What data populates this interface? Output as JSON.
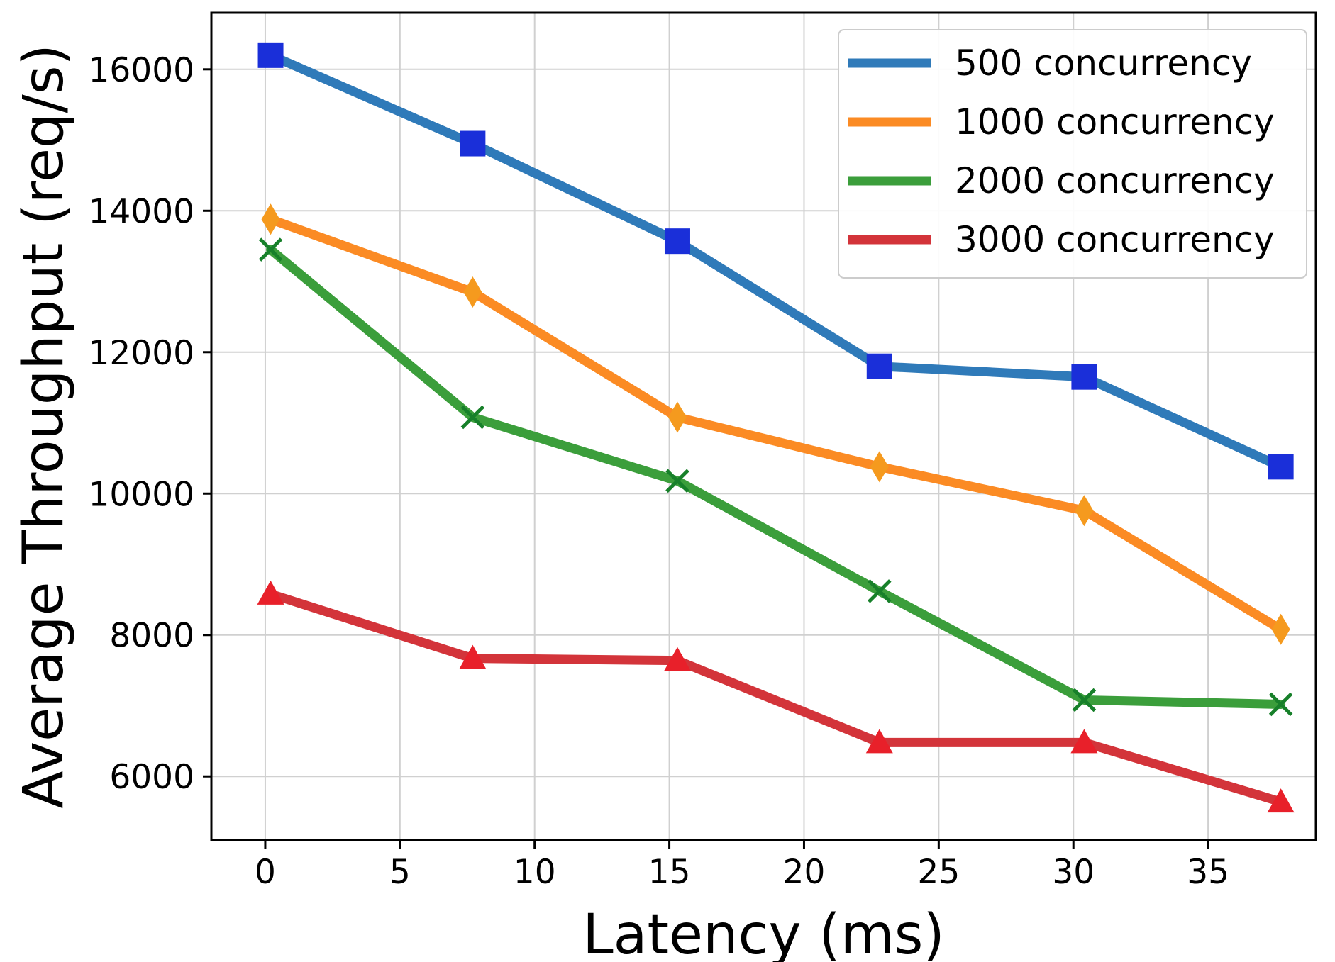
{
  "chart_data": {
    "type": "line",
    "title": "",
    "xlabel": "Latency (ms)",
    "ylabel": "Average Throughput (req/s)",
    "xlim": [
      -2,
      39
    ],
    "ylim": [
      5100,
      16800
    ],
    "xticks": [
      0,
      5,
      10,
      15,
      20,
      25,
      30,
      35
    ],
    "yticks": [
      6000,
      8000,
      10000,
      12000,
      14000,
      16000
    ],
    "grid": true,
    "legend_position": "top-right",
    "x": [
      0.2,
      7.7,
      15.3,
      22.8,
      30.4,
      37.7
    ],
    "series": [
      {
        "name": "500 concurrency",
        "color": "#2f7ab9",
        "marker": "square",
        "marker_color": "#1a2fd9",
        "values": [
          16200,
          14950,
          13570,
          11800,
          11650,
          10380
        ]
      },
      {
        "name": "1000 concurrency",
        "color": "#fb8b24",
        "marker": "diamond",
        "marker_color": "#f59a1e",
        "values": [
          13880,
          12850,
          11080,
          10380,
          9760,
          8080
        ]
      },
      {
        "name": "2000 concurrency",
        "color": "#3b9e3b",
        "marker": "x",
        "marker_color": "#17802a",
        "values": [
          13450,
          11080,
          10180,
          8620,
          7080,
          7020
        ]
      },
      {
        "name": "3000 concurrency",
        "color": "#d3343a",
        "marker": "triangle",
        "marker_color": "#e8202a",
        "values": [
          8580,
          7670,
          7640,
          6480,
          6480,
          5640
        ]
      }
    ]
  }
}
